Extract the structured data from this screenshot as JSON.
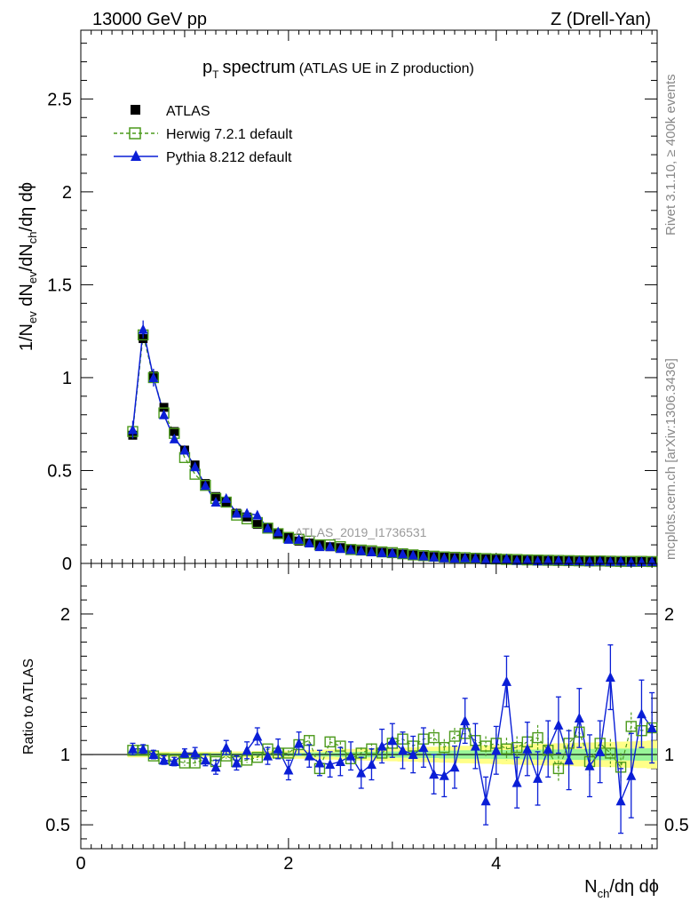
{
  "header": {
    "left_label": "13000 GeV pp",
    "right_label": "Z (Drell-Yan)"
  },
  "side_labels": {
    "rivet": "Rivet 3.1.10, ≥ 400k events",
    "mcplots": "mcplots.cern.ch [arXiv:1306.3436]"
  },
  "colors": {
    "data": "#000000",
    "herwig": "#4c9a1c",
    "pythia": "#0a1ed6",
    "band_inner": "#98f598",
    "band_outer": "#ffff88"
  },
  "chart_data": [
    {
      "type": "scatter",
      "title_main": "p",
      "title_sub": "T",
      "title_tail": "spectrum",
      "title_note": "(ATLAS UE in Z production)",
      "watermark": "ATLAS_2019_I1736531",
      "ylabel": "1/N_ev dN_ev/dN_ch/dη dϕ",
      "xlim": [
        0,
        5.55
      ],
      "ylim": [
        0,
        2.87
      ],
      "yticks": [
        "0",
        "0.5",
        "1",
        "1.5",
        "2",
        "2.5"
      ],
      "ytick_values": [
        0,
        0.5,
        1,
        1.5,
        2,
        2.5
      ],
      "legend": [
        "ATLAS",
        "Herwig 7.2.1 default",
        "Pythia 8.212 default"
      ],
      "x": [
        0.5,
        0.6,
        0.7,
        0.8,
        0.9,
        1.0,
        1.1,
        1.2,
        1.3,
        1.4,
        1.5,
        1.6,
        1.7,
        1.8,
        1.9,
        2.0,
        2.1,
        2.2,
        2.3,
        2.4,
        2.5,
        2.6,
        2.7,
        2.8,
        2.9,
        3.0,
        3.1,
        3.2,
        3.3,
        3.4,
        3.5,
        3.6,
        3.7,
        3.8,
        3.9,
        4.0,
        4.1,
        4.2,
        4.3,
        4.4,
        4.5,
        4.6,
        4.7,
        4.8,
        4.9,
        5.0,
        5.1,
        5.2,
        5.3,
        5.4,
        5.5
      ],
      "series": [
        {
          "name": "ATLAS",
          "values": [
            0.69,
            1.21,
            1.01,
            0.84,
            0.71,
            0.61,
            0.53,
            0.43,
            0.36,
            0.33,
            0.27,
            0.25,
            0.21,
            0.19,
            0.16,
            0.14,
            0.12,
            0.11,
            0.1,
            0.09,
            0.085,
            0.075,
            0.07,
            0.065,
            0.06,
            0.055,
            0.05,
            0.045,
            0.04,
            0.037,
            0.034,
            0.031,
            0.029,
            0.027,
            0.025,
            0.023,
            0.021,
            0.02,
            0.018,
            0.017,
            0.016,
            0.015,
            0.014,
            0.013,
            0.012,
            0.012,
            0.011,
            0.011,
            0.01,
            0.01,
            0.009
          ]
        },
        {
          "name": "Herwig 7.2.1 default",
          "values": [
            0.71,
            1.23,
            1.0,
            0.81,
            0.7,
            0.57,
            0.48,
            0.42,
            0.35,
            0.33,
            0.26,
            0.24,
            0.22,
            0.19,
            0.16,
            0.14,
            0.13,
            0.12,
            0.1,
            0.1,
            0.09,
            0.075,
            0.072,
            0.068,
            0.062,
            0.058,
            0.052,
            0.046,
            0.042,
            0.039,
            0.035,
            0.033,
            0.031,
            0.028,
            0.026,
            0.024,
            0.022,
            0.021,
            0.019,
            0.018,
            0.017,
            0.016,
            0.015,
            0.014,
            0.013,
            0.013,
            0.012,
            0.011,
            0.011,
            0.011,
            0.01
          ]
        },
        {
          "name": "Pythia 8.212 default",
          "values": [
            0.72,
            1.26,
            1.0,
            0.8,
            0.67,
            0.61,
            0.52,
            0.42,
            0.33,
            0.35,
            0.27,
            0.27,
            0.26,
            0.19,
            0.17,
            0.13,
            0.13,
            0.11,
            0.09,
            0.09,
            0.08,
            0.075,
            0.068,
            0.062,
            0.058,
            0.056,
            0.051,
            0.045,
            0.04,
            0.034,
            0.03,
            0.028,
            0.03,
            0.028,
            0.02,
            0.021,
            0.025,
            0.017,
            0.019,
            0.014,
            0.017,
            0.016,
            0.014,
            0.014,
            0.011,
            0.013,
            0.011,
            0.012,
            0.008,
            0.009,
            0.011
          ]
        }
      ]
    },
    {
      "type": "scatter",
      "ylabel": "Ratio to ATLAS",
      "xlabel": "N_ch/dη dϕ",
      "xlim": [
        0,
        5.55
      ],
      "ylim": [
        0.33,
        2.36
      ],
      "yticks": [
        "0.5",
        "1",
        "2"
      ],
      "ytick_values": [
        0.5,
        1,
        2
      ],
      "xticks": [
        "0",
        "2",
        "4"
      ],
      "xtick_values": [
        0,
        2,
        4
      ],
      "x": [
        0.5,
        0.6,
        0.7,
        0.8,
        0.9,
        1.0,
        1.1,
        1.2,
        1.3,
        1.4,
        1.5,
        1.6,
        1.7,
        1.8,
        1.9,
        2.0,
        2.1,
        2.2,
        2.3,
        2.4,
        2.5,
        2.6,
        2.7,
        2.8,
        2.9,
        3.0,
        3.1,
        3.2,
        3.3,
        3.4,
        3.5,
        3.6,
        3.7,
        3.8,
        3.9,
        4.0,
        4.1,
        4.2,
        4.3,
        4.4,
        4.5,
        4.6,
        4.7,
        4.8,
        4.9,
        5.0,
        5.1,
        5.2,
        5.3,
        5.4,
        5.5
      ],
      "band_inner_halfwidth": [
        0.01,
        0.01,
        0.01,
        0.01,
        0.01,
        0.01,
        0.01,
        0.01,
        0.01,
        0.01,
        0.01,
        0.01,
        0.01,
        0.01,
        0.01,
        0.012,
        0.012,
        0.015,
        0.015,
        0.015,
        0.018,
        0.018,
        0.02,
        0.02,
        0.02,
        0.022,
        0.022,
        0.025,
        0.025,
        0.025,
        0.028,
        0.028,
        0.03,
        0.03,
        0.03,
        0.032,
        0.032,
        0.034,
        0.034,
        0.035,
        0.036,
        0.036,
        0.038,
        0.038,
        0.04,
        0.04,
        0.04,
        0.042,
        0.042,
        0.044,
        0.045
      ],
      "band_outer_halfwidth": [
        0.02,
        0.02,
        0.02,
        0.02,
        0.02,
        0.02,
        0.02,
        0.02,
        0.02,
        0.022,
        0.022,
        0.022,
        0.025,
        0.025,
        0.025,
        0.028,
        0.03,
        0.032,
        0.034,
        0.036,
        0.038,
        0.04,
        0.042,
        0.044,
        0.046,
        0.048,
        0.05,
        0.052,
        0.054,
        0.056,
        0.058,
        0.06,
        0.062,
        0.064,
        0.066,
        0.068,
        0.07,
        0.072,
        0.074,
        0.076,
        0.078,
        0.08,
        0.082,
        0.084,
        0.086,
        0.088,
        0.09,
        0.092,
        0.094,
        0.096,
        0.1
      ],
      "series": [
        {
          "name": "Herwig 7.2.1 default",
          "values": [
            1.03,
            1.03,
            0.99,
            0.97,
            0.96,
            0.94,
            0.94,
            0.97,
            0.95,
            0.99,
            0.95,
            0.96,
            0.98,
            1.04,
            1.01,
            1.01,
            1.07,
            1.1,
            0.9,
            1.09,
            1.06,
            0.97,
            1.01,
            1.04,
            1.01,
            1.08,
            1.11,
            1.06,
            1.11,
            1.12,
            1.05,
            1.13,
            1.15,
            1.1,
            1.06,
            1.08,
            1.04,
            1.05,
            1.09,
            1.12,
            1.03,
            0.9,
            1.08,
            1.16,
            0.95,
            1.08,
            1.01,
            0.91,
            1.2,
            1.17,
            1.19
          ],
          "errors": [
            0.03,
            0.02,
            0.02,
            0.02,
            0.02,
            0.02,
            0.02,
            0.02,
            0.02,
            0.02,
            0.02,
            0.02,
            0.02,
            0.02,
            0.02,
            0.02,
            0.03,
            0.03,
            0.03,
            0.03,
            0.03,
            0.04,
            0.04,
            0.04,
            0.04,
            0.05,
            0.05,
            0.05,
            0.05,
            0.06,
            0.06,
            0.06,
            0.06,
            0.07,
            0.07,
            0.07,
            0.08,
            0.08,
            0.08,
            0.09,
            0.09,
            0.09,
            0.1,
            0.1,
            0.1,
            0.1,
            0.1,
            0.1,
            0.1,
            0.1,
            0.1
          ]
        },
        {
          "name": "Pythia 8.212 default",
          "values": [
            1.04,
            1.04,
            1.0,
            0.96,
            0.95,
            1.01,
            1.01,
            0.96,
            0.91,
            1.05,
            0.94,
            1.03,
            1.13,
            0.99,
            1.04,
            0.89,
            1.08,
            0.99,
            0.94,
            0.93,
            0.95,
            0.99,
            0.87,
            0.93,
            1.06,
            1.1,
            1.03,
            1.0,
            1.05,
            0.86,
            0.85,
            0.91,
            1.24,
            1.06,
            0.67,
            1.03,
            1.52,
            0.8,
            1.04,
            0.83,
            1.04,
            1.21,
            0.96,
            1.26,
            0.92,
            1.02,
            1.55,
            0.67,
            0.85,
            1.29,
            1.19
          ],
          "errors": [
            0.04,
            0.03,
            0.03,
            0.03,
            0.03,
            0.03,
            0.04,
            0.04,
            0.05,
            0.05,
            0.05,
            0.06,
            0.06,
            0.06,
            0.07,
            0.07,
            0.08,
            0.08,
            0.09,
            0.09,
            0.1,
            0.1,
            0.11,
            0.11,
            0.12,
            0.12,
            0.13,
            0.13,
            0.14,
            0.14,
            0.15,
            0.15,
            0.16,
            0.16,
            0.17,
            0.17,
            0.18,
            0.18,
            0.19,
            0.19,
            0.2,
            0.2,
            0.21,
            0.21,
            0.22,
            0.22,
            0.23,
            0.23,
            0.3,
            0.24,
            0.25
          ]
        }
      ]
    }
  ]
}
